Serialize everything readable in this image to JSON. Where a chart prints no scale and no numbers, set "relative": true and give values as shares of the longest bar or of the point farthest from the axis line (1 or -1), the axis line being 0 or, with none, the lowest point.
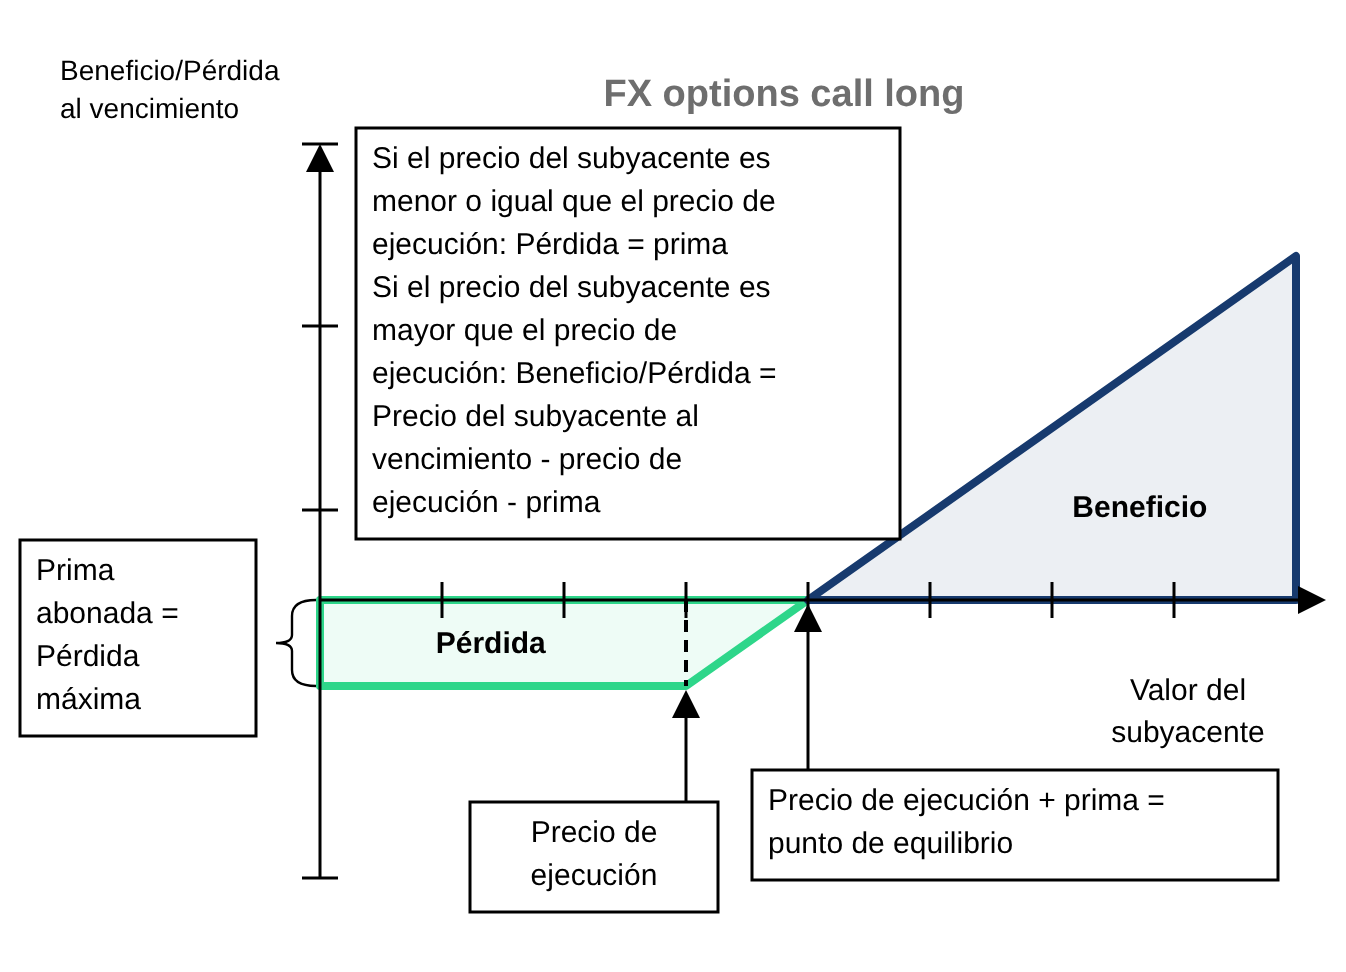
{
  "chart_data": {
    "type": "area",
    "title": "FX options call long",
    "ylabel": "Beneficio/Pérdida al vencimiento",
    "xlabel": "Valor del subyacente",
    "relative": true,
    "categories": [
      null,
      null,
      null,
      null,
      null,
      null,
      null,
      null,
      null
    ],
    "series": [
      {
        "name": "Pérdida",
        "color": "#2ed68a",
        "values": [
          -0.25,
          -0.25,
          -0.25,
          -0.25,
          0,
          null,
          null,
          null,
          null
        ]
      },
      {
        "name": "Beneficio",
        "color": "#173a6e",
        "values": [
          null,
          null,
          null,
          null,
          0,
          0.25,
          0.5,
          0.75,
          1
        ]
      }
    ],
    "annotations": [
      "Si el precio del subyacente es menor o igual que el precio de ejecución: Pérdida = prima\nSi el precio del subyacente es mayor que el precio de ejecución: Beneficio/Pérdida = Precio del subyacente al vencimiento - precio de ejecución - prima",
      "Prima abonada = Pérdida máxima",
      "Precio de ejecución",
      "Precio de ejecución + prima = punto de equilibrio"
    ]
  }
}
